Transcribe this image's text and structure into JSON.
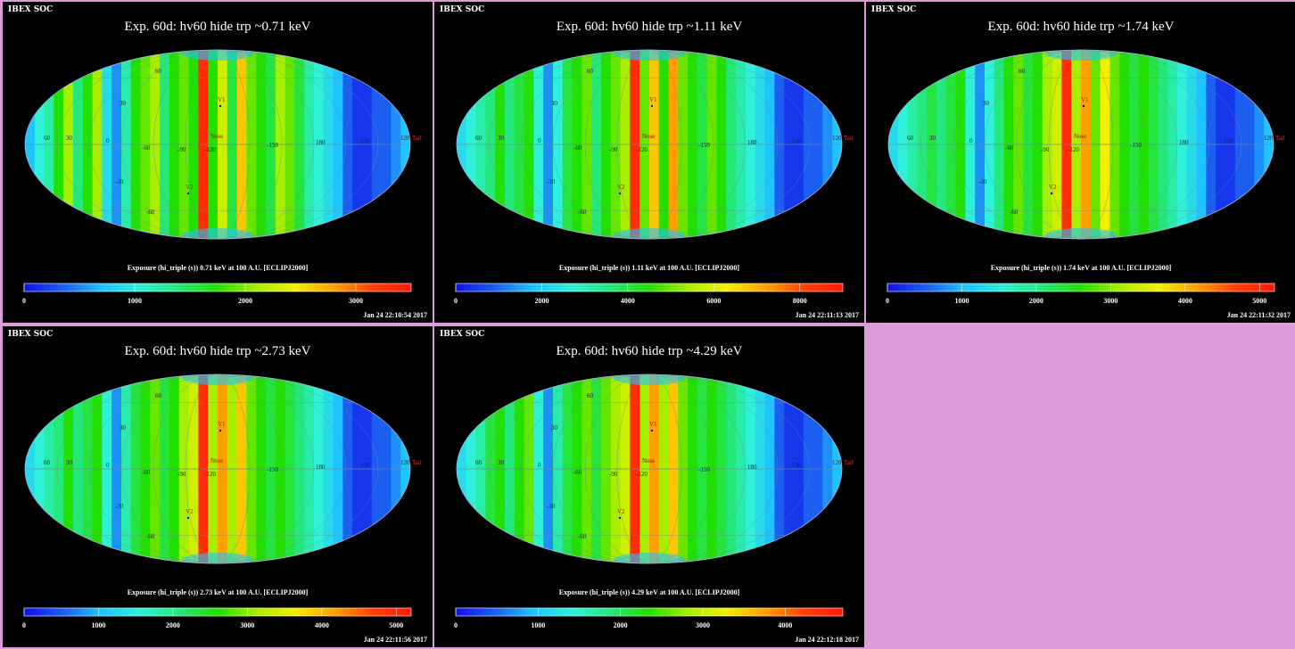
{
  "header": {
    "app_label": "IBEX SOC"
  },
  "colorbar": {
    "stops": [
      "#1010e8",
      "#1b5ef0",
      "#1ec4ff",
      "#2ff0d8",
      "#25e87a",
      "#22e000",
      "#a8ee00",
      "#f4ee00",
      "#ffa000",
      "#ff4000",
      "#ff1808"
    ]
  },
  "annotations": {
    "lon_labels": [
      "60",
      "30",
      "0",
      "-60",
      "-90",
      "-120",
      "-150",
      "180",
      "150",
      "120"
    ],
    "lat_labels": [
      "60",
      "30",
      "-30",
      "-60"
    ],
    "markers": [
      "V1",
      "V2",
      "Nose",
      "Tail"
    ]
  },
  "chart_data": [
    {
      "type": "heatmap",
      "title": "Exp.   60d: hv60 hide trp ~0.71 keV",
      "colorbar_label": "Exposure (hi_triple (s))  0.71 keV at 100 A.U. [ECLIPJ2000]",
      "colorbar_range": [
        0,
        3500
      ],
      "colorbar_ticks": [
        "0",
        "1000",
        "2000",
        "3000"
      ],
      "timestamp": "Jan 24 22:10:54 2017",
      "strip_levels": [
        0.2,
        0.3,
        0.35,
        0.5,
        0.6,
        0.4,
        0.5,
        0.6,
        0.25,
        0.15,
        0.35,
        0.5,
        0.55,
        0.6,
        0.4,
        0.5,
        0.55,
        0.5,
        0.95,
        0.5,
        0.65,
        0.45,
        0.75,
        0.55,
        0.5,
        0.45,
        0.6,
        0.55,
        0.45,
        0.35,
        0.3,
        0.25,
        0.2,
        0.1,
        0.05,
        0.05,
        0.1,
        0.1,
        0.15,
        0.2
      ]
    },
    {
      "type": "heatmap",
      "title": "Exp.   60d: hv60 hide trp ~1.11 keV",
      "colorbar_label": "Exposure (hi_triple (s))  1.11 keV at 100 A.U. [ECLIPJ2000]",
      "colorbar_range": [
        0,
        9000
      ],
      "colorbar_ticks": [
        "0",
        "2000",
        "4000",
        "6000",
        "8000"
      ],
      "timestamp": "Jan 24 22:11:13 2017",
      "strip_levels": [
        0.25,
        0.3,
        0.35,
        0.4,
        0.5,
        0.4,
        0.45,
        0.5,
        0.3,
        0.15,
        0.3,
        0.45,
        0.5,
        0.55,
        0.4,
        0.5,
        0.55,
        0.6,
        0.95,
        0.55,
        0.75,
        0.5,
        0.8,
        0.55,
        0.5,
        0.45,
        0.55,
        0.5,
        0.4,
        0.35,
        0.3,
        0.25,
        0.2,
        0.1,
        0.05,
        0.05,
        0.1,
        0.1,
        0.15,
        0.2
      ]
    },
    {
      "type": "heatmap",
      "title": "Exp.   60d: hv60 hide trp ~1.74 keV",
      "colorbar_label": "Exposure (hi_triple (s))  1.74 keV at 100 A.U. [ECLIPJ2000]",
      "colorbar_range": [
        0,
        5200
      ],
      "colorbar_ticks": [
        "0",
        "1000",
        "2000",
        "3000",
        "4000",
        "5000"
      ],
      "timestamp": "Jan 24 22:11:32 2017",
      "strip_levels": [
        0.25,
        0.3,
        0.35,
        0.4,
        0.45,
        0.4,
        0.45,
        0.5,
        0.3,
        0.15,
        0.3,
        0.4,
        0.5,
        0.55,
        0.45,
        0.5,
        0.6,
        0.65,
        0.95,
        0.6,
        0.8,
        0.55,
        0.7,
        0.55,
        0.5,
        0.45,
        0.5,
        0.45,
        0.4,
        0.35,
        0.3,
        0.25,
        0.2,
        0.1,
        0.05,
        0.05,
        0.1,
        0.1,
        0.15,
        0.2
      ]
    },
    {
      "type": "heatmap",
      "title": "Exp.   60d: hv60 hide trp ~2.73 keV",
      "colorbar_label": "Exposure (hi_triple (s))  2.73 keV at 100 A.U. [ECLIPJ2000]",
      "colorbar_range": [
        0,
        5200
      ],
      "colorbar_ticks": [
        "0",
        "1000",
        "2000",
        "3000",
        "4000",
        "5000"
      ],
      "timestamp": "Jan 24 22:11:56 2017",
      "strip_levels": [
        0.25,
        0.3,
        0.35,
        0.4,
        0.5,
        0.4,
        0.45,
        0.5,
        0.3,
        0.15,
        0.35,
        0.45,
        0.5,
        0.55,
        0.45,
        0.5,
        0.6,
        0.65,
        0.95,
        0.6,
        0.8,
        0.6,
        0.75,
        0.55,
        0.5,
        0.45,
        0.5,
        0.45,
        0.4,
        0.35,
        0.3,
        0.25,
        0.2,
        0.1,
        0.05,
        0.05,
        0.1,
        0.1,
        0.15,
        0.2
      ]
    },
    {
      "type": "heatmap",
      "title": "Exp.   60d: hv60 hide trp ~4.29 keV",
      "colorbar_label": "Exposure (hi_triple (s))  4.29 keV at 100 A.U. [ECLIPJ2000]",
      "colorbar_range": [
        0,
        4700
      ],
      "colorbar_ticks": [
        "0",
        "1000",
        "2000",
        "3000",
        "4000"
      ],
      "timestamp": "Jan 24 22:12:18 2017",
      "strip_levels": [
        0.25,
        0.3,
        0.35,
        0.45,
        0.5,
        0.4,
        0.5,
        0.55,
        0.3,
        0.15,
        0.35,
        0.45,
        0.5,
        0.55,
        0.45,
        0.55,
        0.6,
        0.65,
        0.95,
        0.6,
        0.8,
        0.6,
        0.75,
        0.55,
        0.5,
        0.45,
        0.5,
        0.45,
        0.4,
        0.35,
        0.3,
        0.25,
        0.2,
        0.1,
        0.05,
        0.05,
        0.1,
        0.1,
        0.15,
        0.2
      ]
    }
  ]
}
